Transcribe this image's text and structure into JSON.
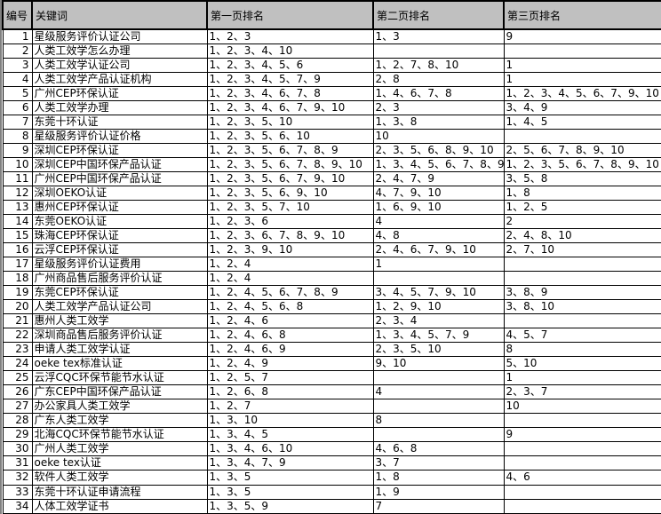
{
  "sheet": {
    "colors": {
      "header_bg": "#c0c0c0",
      "grid_line": "#000000",
      "cell_bg": "#ffffff",
      "text": "#000000",
      "left_edge": "#808080"
    },
    "header": {
      "id": "编号",
      "keyword": "关键词",
      "page1": "第一页排名",
      "page2": "第二页排名",
      "page3": "第三页排名"
    },
    "rows": [
      [
        "1",
        "星级服务评价认证公司",
        "1、2、3",
        "1、3",
        "9"
      ],
      [
        "2",
        "人类工效学怎么办理",
        "1、2、3、4、10",
        "",
        ""
      ],
      [
        "3",
        "人类工效学认证公司",
        "1、2、3、4、5、6",
        "1、2、7、8、10",
        "1"
      ],
      [
        "4",
        "人类工效学产品认证机构",
        "1、2、3、4、5、7、9",
        "2、8",
        "1"
      ],
      [
        "5",
        "广州CEP环保认证",
        "1、2、3、4、6、7、8",
        "1、4、6、7、8",
        "1、2、3、4、5、6、7、9、10"
      ],
      [
        "6",
        "人类工效学办理",
        "1、2、3、4、6、7、9、10",
        "2、3",
        "3、4、9"
      ],
      [
        "7",
        "东莞十环认证",
        "1、2、3、5、10",
        "1、3、8",
        "1、4、5"
      ],
      [
        "8",
        "星级服务评价认证价格",
        "1、2、3、5、6、10",
        "10",
        ""
      ],
      [
        "9",
        "深圳CEP环保认证",
        "1、2、3、5、6、7、8、9",
        "2、3、5、6、8、9、10",
        "2、5、6、7、8、9、10"
      ],
      [
        "10",
        "深圳CEP中国环保产品认证",
        "1、2、3、5、6、7、8、9、10",
        "1、3、4、5、6、7、8、9",
        "1、2、3、5、6、7、8、9、10"
      ],
      [
        "11",
        "广州CEP中国环保产品认证",
        "1、2、3、5、6、7、9、10",
        "2、4、7、9",
        "3、5、8"
      ],
      [
        "12",
        "深圳OEKO认证",
        "1、2、3、5、6、9、10",
        "4、7、9、10",
        "1、8"
      ],
      [
        "13",
        "惠州CEP环保认证",
        "1、2、3、5、7、10",
        "1、6、9、10",
        "1、2、5"
      ],
      [
        "14",
        "东莞OEKO认证",
        "1、2、3、6",
        "4",
        "2"
      ],
      [
        "15",
        "珠海CEP环保认证",
        "1、2、3、6、7、8、9、10",
        "4、8",
        "2、4、8、10"
      ],
      [
        "16",
        "云浮CEP环保认证",
        "1、2、3、9、10",
        "2、4、6、7、9、10",
        "2、7、10"
      ],
      [
        "17",
        "星级服务评价认证费用",
        "1、2、4",
        "1",
        ""
      ],
      [
        "18",
        "广州商品售后服务评价认证",
        "1、2、4",
        "",
        ""
      ],
      [
        "19",
        "东莞CEP环保认证",
        "1、2、4、5、6、7、8、9",
        "3、4、5、7、9、10",
        "3、8、9"
      ],
      [
        "20",
        "人类工效学产品认证公司",
        "1、2、4、5、6、8",
        "1、2、9、10",
        "3、8、10"
      ],
      [
        "21",
        "惠州人类工效学",
        "1、2、4、6",
        "2、3、4",
        ""
      ],
      [
        "22",
        "深圳商品售后服务评价认证",
        "1、2、4、6、8",
        "1、3、4、5、7、9",
        "4、5、7"
      ],
      [
        "23",
        "申请人类工效学认证",
        "1、2、4、6、9",
        "2、3、5、10",
        "8"
      ],
      [
        "24",
        "oeke tex标准认证",
        "1、2、4、9",
        "9、10",
        "5、10"
      ],
      [
        "25",
        "云浮CQC环保节能节水认证",
        "1、2、5、7",
        "",
        "1"
      ],
      [
        "26",
        "广东CEP中国环保产品认证",
        "1、2、6、8",
        "4",
        "2、3、7"
      ],
      [
        "27",
        "办公家具人类工效学",
        "1、2、7",
        "",
        "10"
      ],
      [
        "28",
        "广东人类工效学",
        "1、3、10",
        "8",
        ""
      ],
      [
        "29",
        "北海CQC环保节能节水认证",
        "1、3、4、5",
        "",
        "9"
      ],
      [
        "30",
        "广州人类工效学",
        "1、3、4、6、10",
        "4、6、8",
        ""
      ],
      [
        "31",
        "oeke tex认证",
        "1、3、4、7、9",
        "3、7",
        ""
      ],
      [
        "32",
        "软件人类工效学",
        "1、3、5",
        "1、8",
        "4、6"
      ],
      [
        "33",
        "东莞十环认证申请流程",
        "1、3、5",
        "1、9",
        ""
      ],
      [
        "34",
        "人体工效学证书",
        "1、3、5、9",
        "7",
        ""
      ]
    ]
  }
}
